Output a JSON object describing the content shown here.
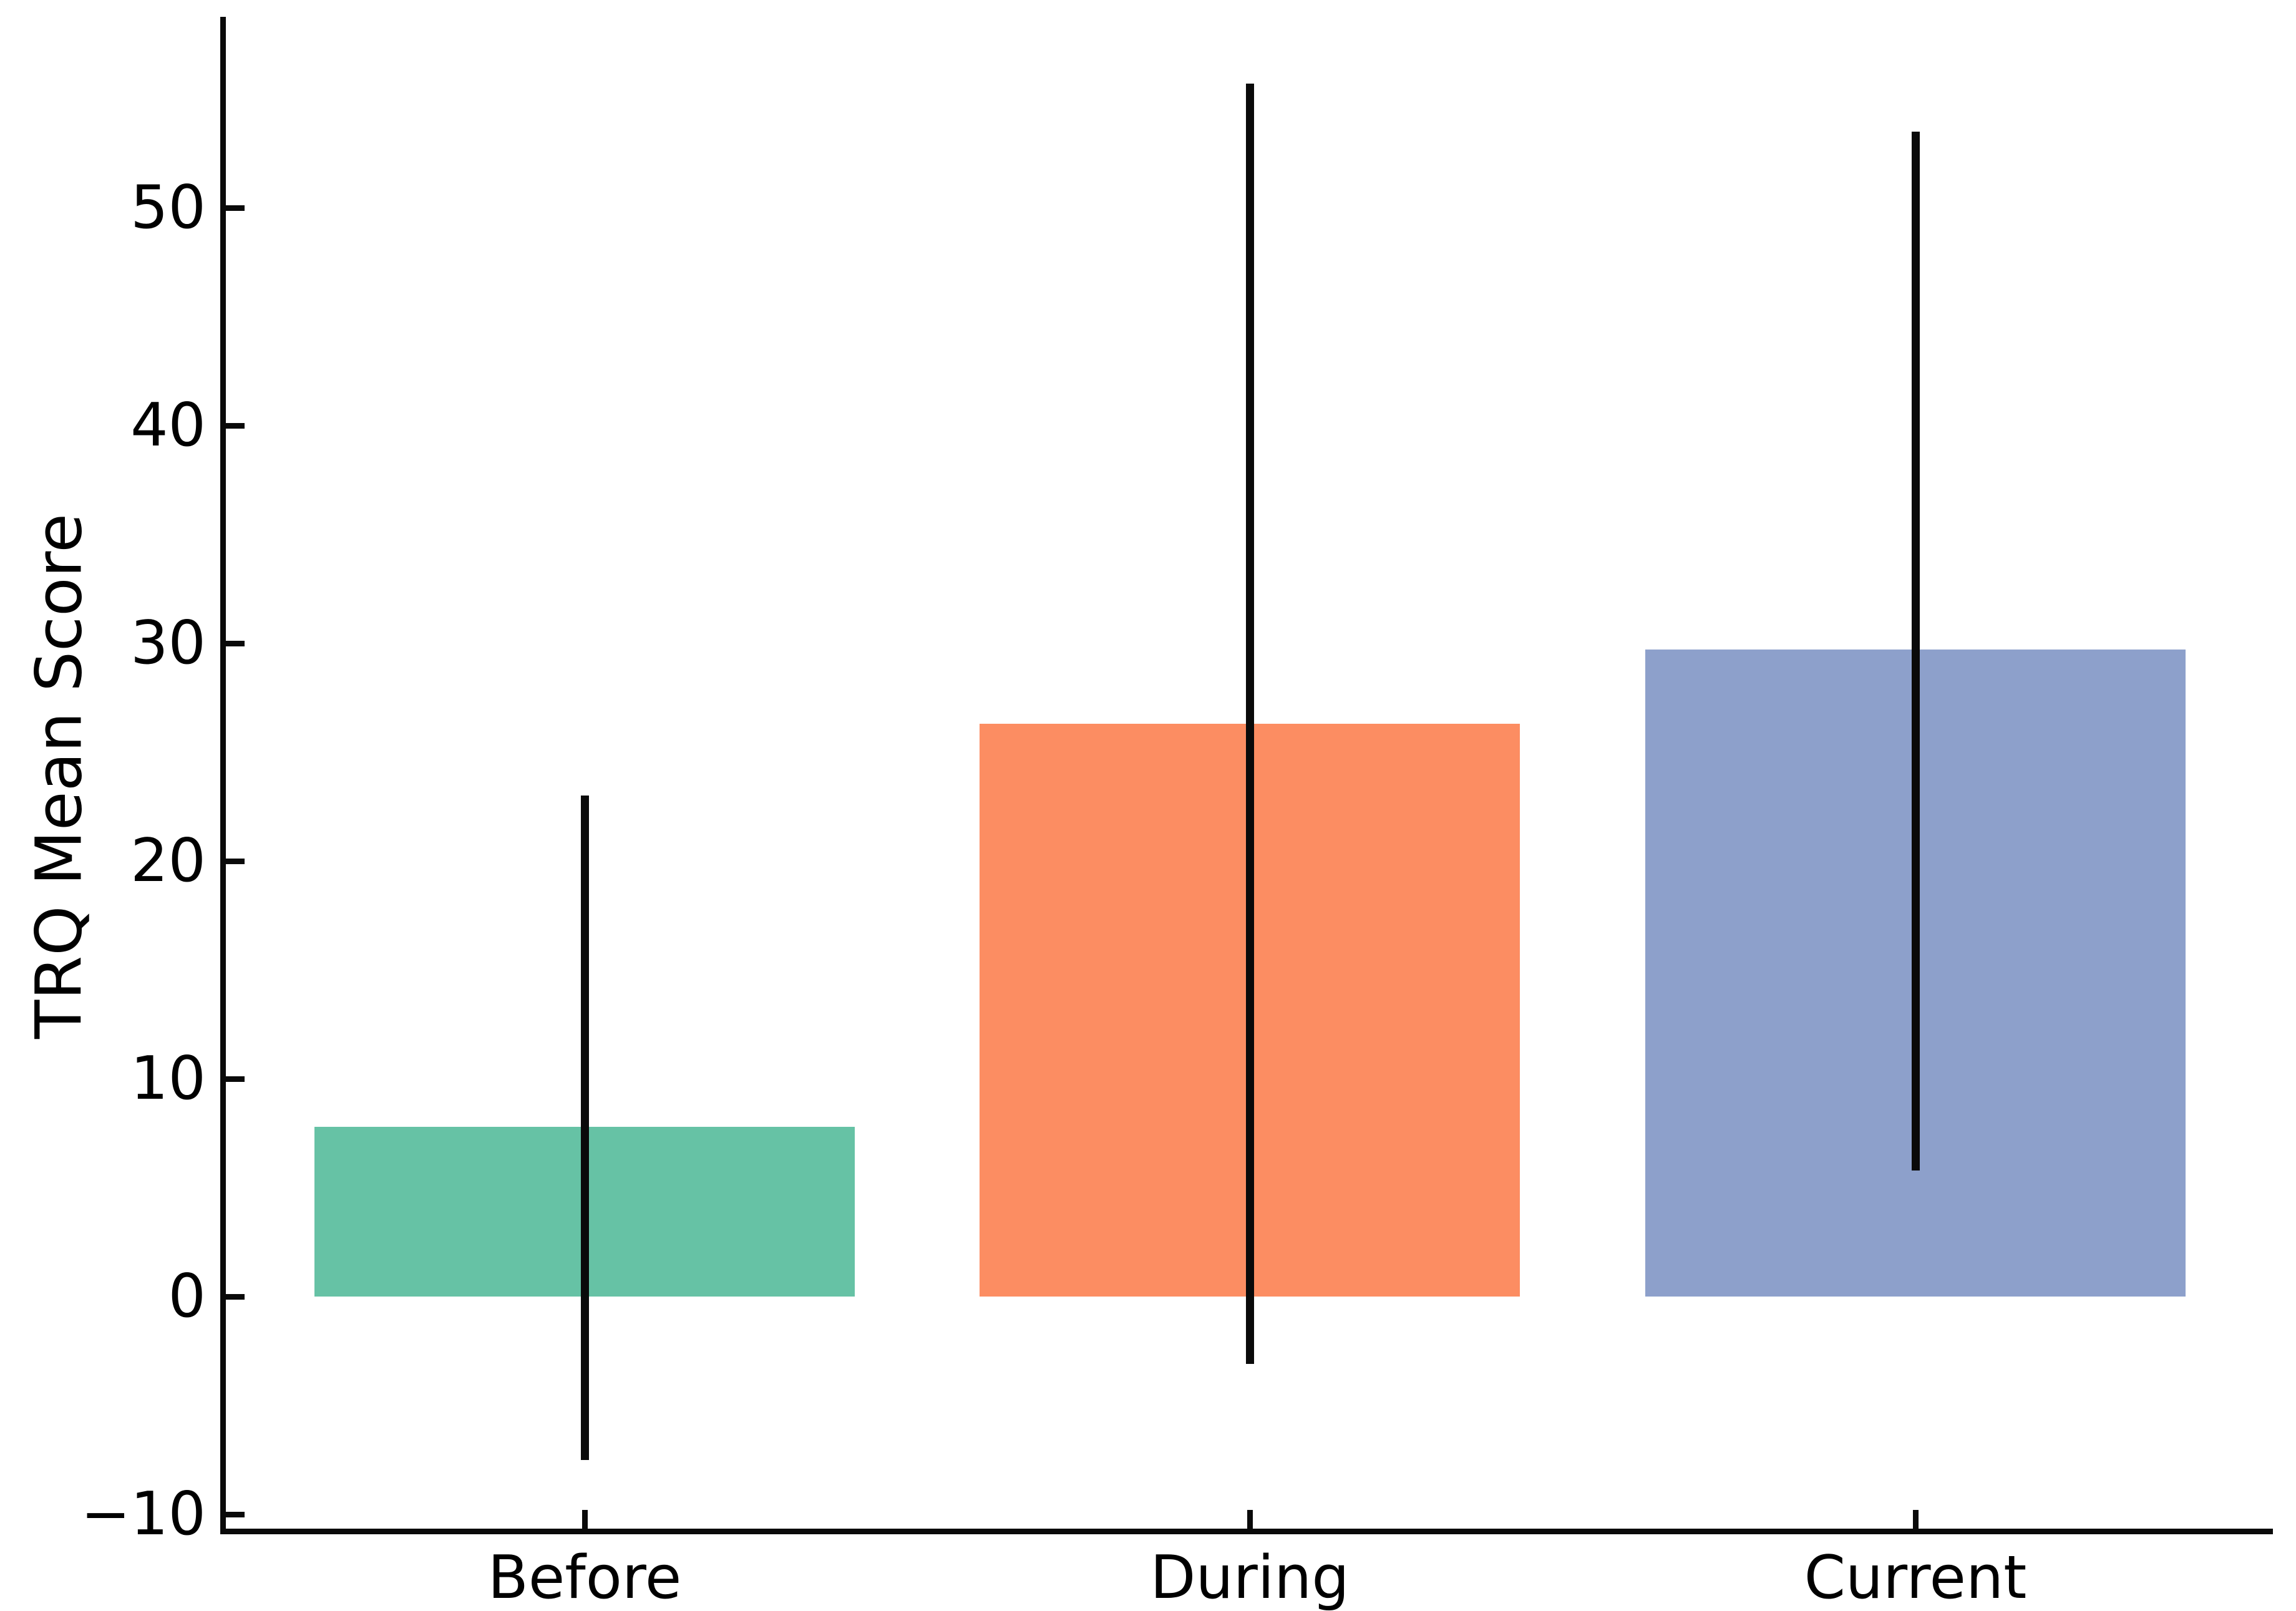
{
  "figure": {
    "title": "",
    "ylabel": "TRQ Mean Score"
  },
  "chart_data": {
    "type": "bar",
    "categories": [
      "Before",
      "During",
      "Current"
    ],
    "values": [
      7.8,
      26.3,
      29.7
    ],
    "series": [
      {
        "name": "TRQ Mean Score",
        "values": [
          7.8,
          26.3,
          29.7
        ]
      }
    ],
    "error_low": [
      -7.5,
      -3.1,
      5.8
    ],
    "error_high": [
      23.0,
      55.7,
      53.5
    ],
    "bar_colors": [
      "#66c2a5",
      "#fc8d62",
      "#8da0cb"
    ],
    "error_bar_color": "#0a0a0a",
    "title": "",
    "xlabel": "",
    "ylabel": "TRQ Mean Score",
    "yticks": [
      -10,
      0,
      10,
      20,
      30,
      40,
      50
    ],
    "ytick_labels": [
      "−10",
      "0",
      "10",
      "20",
      "30",
      "40",
      "50"
    ],
    "ylim": [
      -10.7,
      58.8
    ],
    "grid": false,
    "legend_position": "none"
  }
}
